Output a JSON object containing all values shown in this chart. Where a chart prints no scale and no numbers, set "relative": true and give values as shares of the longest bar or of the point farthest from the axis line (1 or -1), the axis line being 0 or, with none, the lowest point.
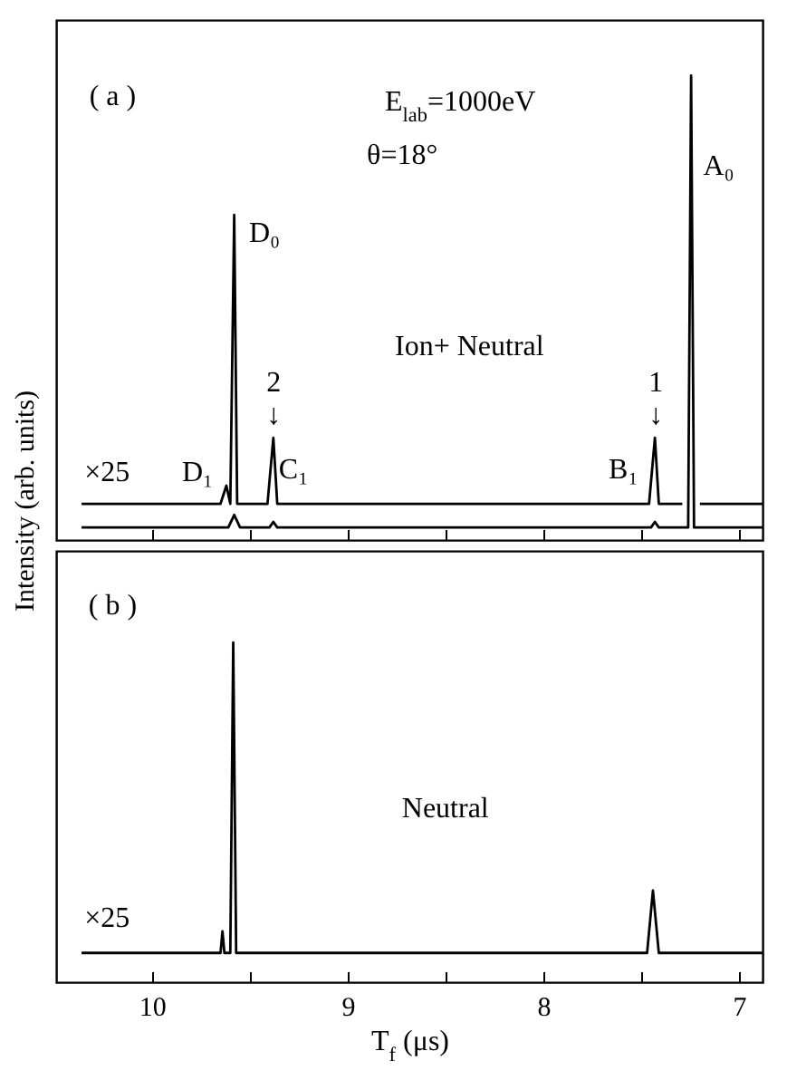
{
  "chart_data": [
    {
      "type": "line",
      "ylabel": "Intensity (arb. units)",
      "relative": true,
      "xlim": [
        10.49,
        6.88
      ],
      "xticks": [
        10,
        {
          "value": 9.5,
          "label": null
        },
        9,
        {
          "value": 8.5,
          "label": null
        },
        8,
        {
          "value": 7.5,
          "label": null
        },
        7
      ],
      "tick_labels": false,
      "series": [
        {
          "color": "#000000",
          "x": [
            10.36,
            9.65,
            9.62,
            9.6,
            9.58,
            9.565,
            9.41,
            9.38,
            9.36,
            7.46,
            7.43,
            7.41,
            7.29,
            7.28,
            7.2,
            6.88
          ],
          "values": [
            0.078,
            0.078,
            0.117,
            0.078,
            0.7,
            0.078,
            0.078,
            0.22,
            0.078,
            0.078,
            0.22,
            0.078,
            0.078,
            null,
            0.078,
            0.078
          ]
        },
        {
          "color": "#000000",
          "x": [
            10.36,
            9.61,
            9.58,
            9.55,
            9.4,
            9.38,
            9.36,
            7.45,
            7.43,
            7.41,
            7.26,
            7.245,
            7.23,
            6.88
          ],
          "values": [
            0.027,
            0.027,
            0.054,
            0.027,
            0.027,
            0.039,
            0.027,
            0.027,
            0.039,
            0.027,
            0.027,
            1,
            0.027,
            0.027
          ]
        }
      ],
      "annotations": [
        "( a )",
        "E$_{lab}$=1000eV",
        "θ=18°",
        "Ion+ Neutral",
        "2",
        "↓",
        "1",
        "↓",
        "×25",
        "D₁",
        "D₀",
        "C₁",
        "B₁",
        "A₀"
      ]
    },
    {
      "type": "line",
      "xlabel": "T$_{f}$  (μs)",
      "relative": true,
      "xlim": [
        10.49,
        6.88
      ],
      "xticks": [
        10,
        {
          "value": 9.5,
          "label": null
        },
        9,
        {
          "value": 8.5,
          "label": null
        },
        8,
        {
          "value": 7.5,
          "label": null
        },
        7
      ],
      "tick_labels": "x",
      "series": [
        {
          "color": "#000000",
          "x": [
            10.36,
            9.65,
            9.64,
            9.63,
            9.6,
            9.585,
            9.57,
            7.47,
            7.44,
            7.41,
            6.88
          ],
          "values": [
            0.086,
            0.086,
            0.15,
            0.086,
            0.086,
            1,
            0.086,
            0.086,
            0.27,
            0.086,
            0.086
          ]
        }
      ],
      "annotations": [
        "( b )",
        "Neutral",
        "×25"
      ]
    }
  ]
}
